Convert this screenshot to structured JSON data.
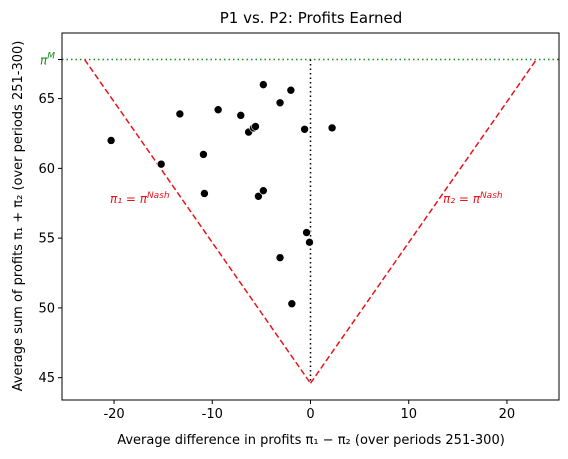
{
  "chart_data": {
    "type": "scatter",
    "title": "P1 vs. P2: Profits Earned",
    "xlabel": "Average difference in profits π₁ − π₂ (over periods 251-300)",
    "ylabel": "Average sum of profits π₁ + π₂ (over periods 251-300)",
    "xlim": [
      -25.3,
      25.3
    ],
    "ylim": [
      43.4,
      69.7
    ],
    "xticks": [
      -20,
      -10,
      0,
      10,
      20
    ],
    "yticks": [
      45,
      50,
      55,
      60,
      65
    ],
    "grid": false,
    "points": [
      {
        "x": -20.3,
        "y": 62.0
      },
      {
        "x": -15.2,
        "y": 60.3
      },
      {
        "x": -13.3,
        "y": 63.9
      },
      {
        "x": -10.9,
        "y": 61.0
      },
      {
        "x": -10.8,
        "y": 58.2
      },
      {
        "x": -9.4,
        "y": 64.2
      },
      {
        "x": -7.1,
        "y": 63.8
      },
      {
        "x": -6.3,
        "y": 62.6
      },
      {
        "x": -5.8,
        "y": 62.9
      },
      {
        "x": -5.6,
        "y": 63.0
      },
      {
        "x": -5.3,
        "y": 58.0
      },
      {
        "x": -4.8,
        "y": 58.4
      },
      {
        "x": -4.8,
        "y": 66.0
      },
      {
        "x": -3.1,
        "y": 64.7
      },
      {
        "x": -3.1,
        "y": 53.6
      },
      {
        "x": -2.0,
        "y": 65.6
      },
      {
        "x": -1.9,
        "y": 50.3
      },
      {
        "x": -0.6,
        "y": 62.8
      },
      {
        "x": -0.4,
        "y": 55.4
      },
      {
        "x": -0.1,
        "y": 54.7
      },
      {
        "x": 2.2,
        "y": 62.9
      }
    ],
    "pi_M": 67.8,
    "nash_vertex": {
      "x": 0,
      "y": 44.6
    },
    "nash_lines": [
      {
        "from": [
          -23,
          67.8
        ],
        "to": [
          0,
          44.6
        ]
      },
      {
        "from": [
          0,
          44.6
        ],
        "to": [
          23,
          67.8
        ]
      }
    ],
    "annotations": {
      "pi_M_label": "π",
      "pi_M_sup": "M",
      "left_line_label": "π₁ = π",
      "left_line_sup": "Nash",
      "right_line_label": "π₂ = π",
      "right_line_sup": "Nash"
    },
    "colors": {
      "points": "#000000",
      "nash_lines": "#e8141a",
      "pi_M_line": "#1a8c1a",
      "center_line": "#000000"
    }
  }
}
